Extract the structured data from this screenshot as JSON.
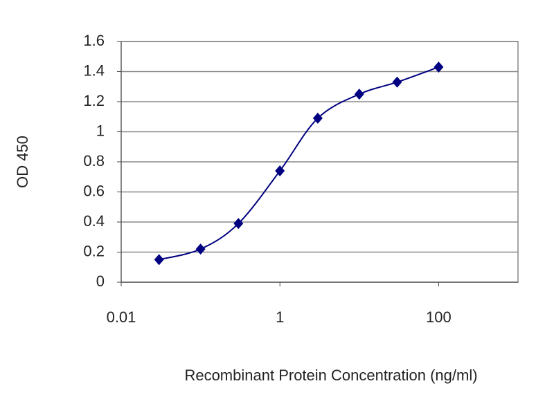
{
  "chart_data": {
    "type": "line",
    "x_label": "Recombinant Protein Concentration (ng/ml)",
    "y_label": "OD 450",
    "x": [
      0.03,
      0.1,
      0.3,
      1,
      3,
      10,
      30,
      100
    ],
    "values": [
      0.15,
      0.22,
      0.39,
      0.74,
      1.09,
      1.25,
      1.33,
      1.43
    ],
    "color": "#000080",
    "xscale": "log",
    "xlim": [
      0.01,
      1000
    ],
    "xticks": [
      0.01,
      1,
      100
    ],
    "ylim": [
      0,
      1.6
    ],
    "yticks": [
      0,
      0.2,
      0.4,
      0.6,
      0.8,
      1,
      1.2,
      1.4,
      1.6
    ],
    "grid": true
  }
}
